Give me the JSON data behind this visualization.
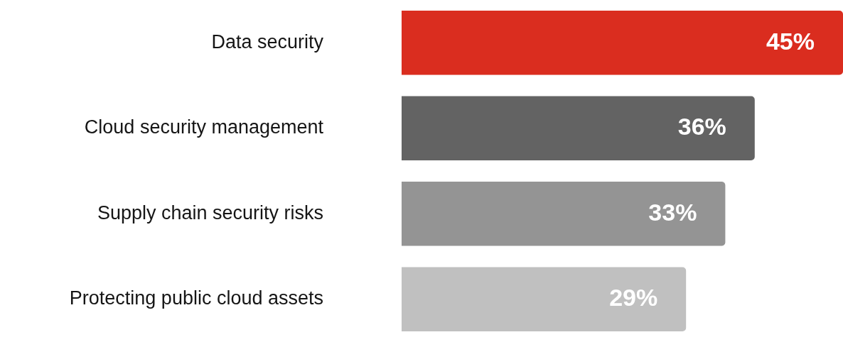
{
  "chart_data": {
    "type": "bar",
    "orientation": "horizontal",
    "categories": [
      "Data security",
      "Cloud security management",
      "Supply chain security risks",
      "Protecting public cloud assets"
    ],
    "values": [
      45,
      36,
      33,
      29
    ],
    "colors": [
      "#da2d1f",
      "#636363",
      "#949494",
      "#c0c0c0"
    ],
    "value_labels": [
      "45%",
      "36%",
      "33%",
      "29%"
    ],
    "xlim": [
      0,
      45
    ],
    "legend": false,
    "tick_labels": "y"
  }
}
